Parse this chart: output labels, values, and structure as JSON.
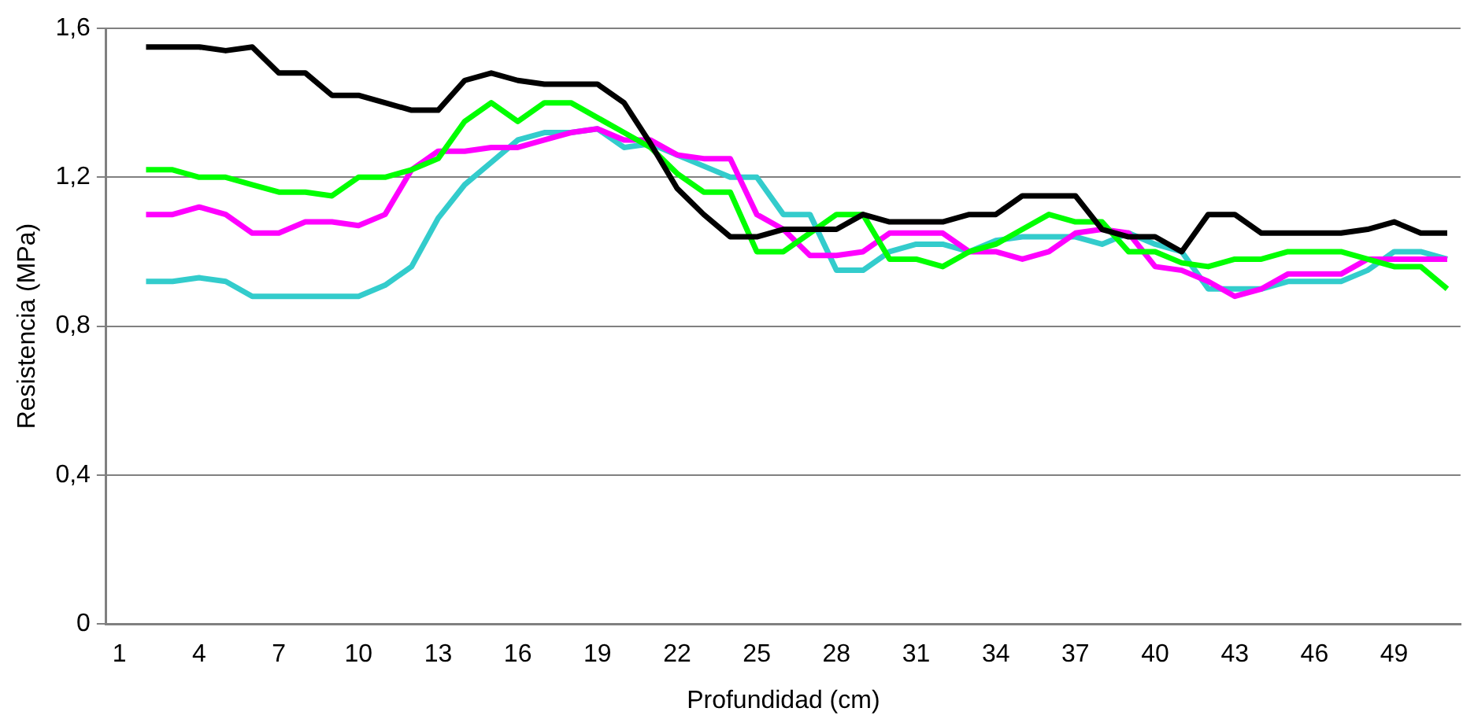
{
  "chart_data": {
    "type": "line",
    "xlabel": "Profundidad (cm)",
    "ylabel": "Resistencia (MPa)",
    "categories": [
      "1",
      null,
      null,
      "4",
      null,
      null,
      "7",
      null,
      null,
      "10",
      null,
      null,
      "13",
      null,
      null,
      "16",
      null,
      null,
      "19",
      null,
      null,
      "22",
      null,
      null,
      "25",
      null,
      null,
      "28",
      null,
      null,
      "31",
      null,
      null,
      "34",
      null,
      null,
      "37",
      null,
      null,
      "40",
      null,
      null,
      "43",
      null,
      null,
      "46",
      null,
      null,
      "49",
      null,
      null
    ],
    "series": [
      {
        "color": "#000000",
        "values": [
          null,
          1.55,
          1.55,
          1.55,
          1.54,
          1.55,
          1.48,
          1.48,
          1.42,
          1.42,
          1.4,
          1.38,
          1.38,
          1.46,
          1.48,
          1.46,
          1.45,
          1.45,
          1.45,
          1.4,
          1.29,
          1.17,
          1.1,
          1.04,
          1.04,
          1.06,
          1.06,
          1.06,
          1.1,
          1.08,
          1.08,
          1.08,
          1.1,
          1.1,
          1.15,
          1.15,
          1.15,
          1.06,
          1.04,
          1.04,
          1.0,
          1.1,
          1.1,
          1.05,
          1.05,
          1.05,
          1.05,
          1.06,
          1.08,
          1.05,
          1.05
        ]
      },
      {
        "color": "#00ff00",
        "values": [
          null,
          1.22,
          1.22,
          1.2,
          1.2,
          1.18,
          1.16,
          1.16,
          1.15,
          1.2,
          1.2,
          1.22,
          1.25,
          1.35,
          1.4,
          1.35,
          1.4,
          1.4,
          1.36,
          1.32,
          1.28,
          1.21,
          1.16,
          1.16,
          1.0,
          1.0,
          1.05,
          1.1,
          1.1,
          0.98,
          0.98,
          0.96,
          1.0,
          1.02,
          1.06,
          1.1,
          1.08,
          1.08,
          1.0,
          1.0,
          0.97,
          0.96,
          0.98,
          0.98,
          1.0,
          1.0,
          1.0,
          0.98,
          0.96,
          0.96,
          0.9
        ]
      },
      {
        "color": "#ff00ff",
        "values": [
          null,
          1.1,
          1.1,
          1.12,
          1.1,
          1.05,
          1.05,
          1.08,
          1.08,
          1.07,
          1.1,
          1.22,
          1.27,
          1.27,
          1.28,
          1.28,
          1.3,
          1.32,
          1.33,
          1.3,
          1.3,
          1.26,
          1.25,
          1.25,
          1.1,
          1.06,
          0.99,
          0.99,
          1.0,
          1.05,
          1.05,
          1.05,
          1.0,
          1.0,
          0.98,
          1.0,
          1.05,
          1.06,
          1.05,
          0.96,
          0.95,
          0.92,
          0.88,
          0.9,
          0.94,
          0.94,
          0.94,
          0.98,
          0.98,
          0.98,
          0.98
        ]
      },
      {
        "color": "#33cccc",
        "values": [
          null,
          0.92,
          0.92,
          0.93,
          0.92,
          0.88,
          0.88,
          0.88,
          0.88,
          0.88,
          0.91,
          0.96,
          1.09,
          1.18,
          1.24,
          1.3,
          1.32,
          1.32,
          1.33,
          1.28,
          1.29,
          1.26,
          1.23,
          1.2,
          1.2,
          1.1,
          1.1,
          0.95,
          0.95,
          1.0,
          1.02,
          1.02,
          1.0,
          1.03,
          1.04,
          1.04,
          1.04,
          1.02,
          1.05,
          1.02,
          1.0,
          0.9,
          0.9,
          0.9,
          0.92,
          0.92,
          0.92,
          0.95,
          1.0,
          1.0,
          0.98
        ]
      }
    ],
    "ylim": [
      0,
      1.6
    ],
    "yticks": [
      0,
      {
        "value": 0.4,
        "label": "0,4"
      },
      {
        "value": 0.8,
        "label": "0,8"
      },
      {
        "value": 1.2,
        "label": "1,2"
      },
      {
        "value": 1.6,
        "label": "1,6"
      }
    ],
    "grid": "y",
    "legend": false,
    "marker": "none",
    "line_style": "solid"
  }
}
